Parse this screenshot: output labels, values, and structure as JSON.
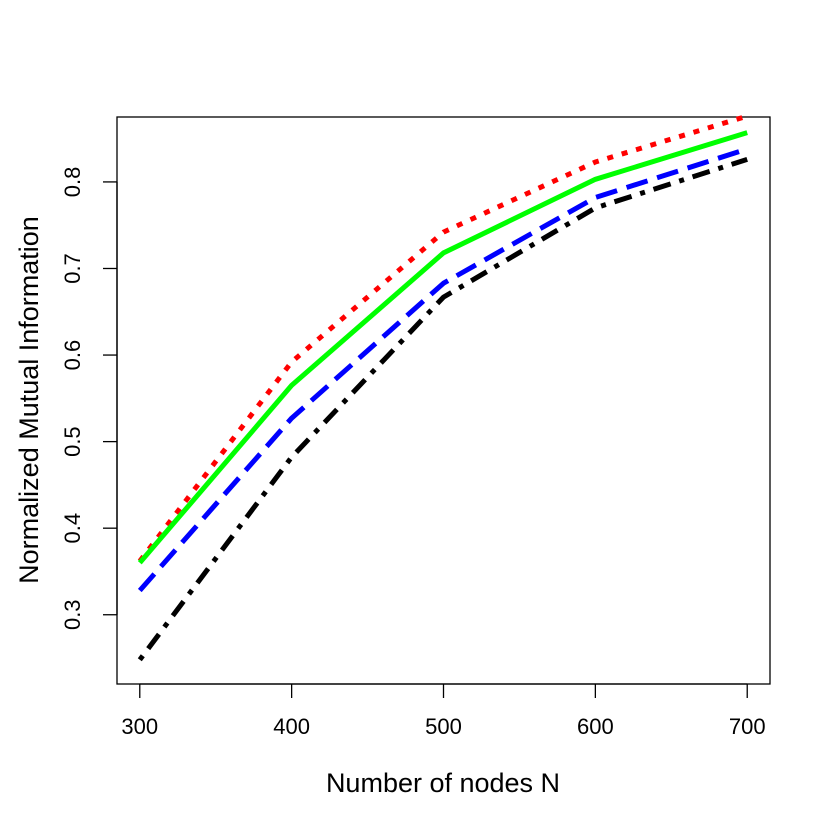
{
  "chart_data": {
    "type": "line",
    "title": "",
    "xlabel": "Number of nodes N",
    "ylabel": "Normalized Mutual Information",
    "xlim": [
      285,
      715
    ],
    "ylim": [
      0.22,
      0.875
    ],
    "x": [
      300,
      400,
      500,
      600,
      700
    ],
    "xticks": [
      300,
      400,
      500,
      600,
      700
    ],
    "yticks": [
      0.3,
      0.4,
      0.5,
      0.6,
      0.7,
      0.8
    ],
    "xtick_labels": [
      "300",
      "400",
      "500",
      "600",
      "700"
    ],
    "ytick_labels": [
      "0.3",
      "0.4",
      "0.5",
      "0.6",
      "0.7",
      "0.8"
    ],
    "grid": false,
    "legend": "none",
    "series": [
      {
        "values": [
          0.362,
          0.592,
          0.742,
          0.823,
          0.876
        ],
        "color": "#ff0000",
        "style": "dotted"
      },
      {
        "values": [
          0.36,
          0.565,
          0.718,
          0.803,
          0.857
        ],
        "color": "#00ff00",
        "style": "solid"
      },
      {
        "values": [
          0.328,
          0.527,
          0.683,
          0.782,
          0.838
        ],
        "color": "#0000ff",
        "style": "dashed"
      },
      {
        "values": [
          0.248,
          0.482,
          0.667,
          0.77,
          0.826
        ],
        "color": "#000000",
        "style": "dotdash"
      }
    ]
  }
}
